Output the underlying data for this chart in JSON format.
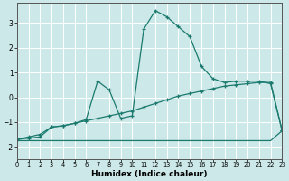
{
  "xlabel": "Humidex (Indice chaleur)",
  "ylabel": "",
  "background_color": "#cde8e8",
  "grid_color": "#ffffff",
  "line_color": "#1a7a6e",
  "x_data": [
    0,
    1,
    2,
    3,
    4,
    5,
    6,
    7,
    8,
    9,
    10,
    11,
    12,
    13,
    14,
    15,
    16,
    17,
    18,
    19,
    20,
    21,
    22,
    23
  ],
  "line1": [
    -1.7,
    -1.6,
    -1.5,
    -1.2,
    -1.15,
    -1.05,
    -0.9,
    0.65,
    0.3,
    -0.85,
    -0.75,
    2.75,
    3.5,
    3.25,
    2.85,
    2.45,
    1.25,
    0.75,
    0.6,
    0.65,
    0.65,
    0.65,
    0.55,
    -1.35
  ],
  "line2": [
    -1.7,
    -1.65,
    -1.6,
    -1.2,
    -1.15,
    -1.05,
    -0.95,
    -0.85,
    -0.75,
    -0.65,
    -0.55,
    -0.4,
    -0.25,
    -0.1,
    0.05,
    0.15,
    0.25,
    0.35,
    0.45,
    0.5,
    0.55,
    0.6,
    0.6,
    -1.35
  ],
  "line3": [
    -1.75,
    -1.75,
    -1.75,
    -1.75,
    -1.75,
    -1.75,
    -1.75,
    -1.75,
    -1.75,
    -1.75,
    -1.75,
    -1.75,
    -1.75,
    -1.75,
    -1.75,
    -1.75,
    -1.75,
    -1.75,
    -1.75,
    -1.75,
    -1.75,
    -1.75,
    -1.75,
    -1.35
  ],
  "ylim": [
    -2.5,
    3.8
  ],
  "xlim": [
    0,
    23
  ],
  "yticks": [
    -2,
    -1,
    0,
    1,
    2,
    3
  ],
  "xticks": [
    0,
    1,
    2,
    3,
    4,
    5,
    6,
    7,
    8,
    9,
    10,
    11,
    12,
    13,
    14,
    15,
    16,
    17,
    18,
    19,
    20,
    21,
    22,
    23
  ]
}
